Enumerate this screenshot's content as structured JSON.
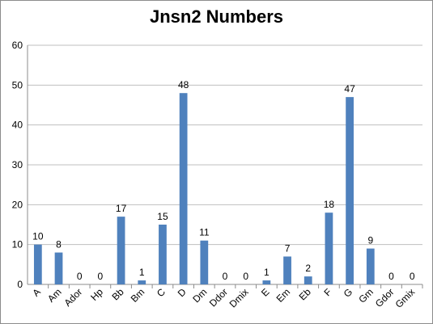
{
  "chart_data": {
    "type": "bar",
    "title": "Jnsn2 Numbers",
    "xlabel": "",
    "ylabel": "",
    "ylim": [
      0,
      60
    ],
    "yticks": [
      0,
      10,
      20,
      30,
      40,
      50,
      60
    ],
    "grid": true,
    "legend": "none",
    "bar_color": "#4f81bd",
    "grid_color": "#bfbfbf",
    "categories": [
      "A",
      "Am",
      "Ador",
      "Hp",
      "Bb",
      "Bm",
      "C",
      "D",
      "Dm",
      "Ddor",
      "Dmix",
      "E",
      "Em",
      "Eb",
      "F",
      "G",
      "Gm",
      "Gdor",
      "Gmix"
    ],
    "values": [
      10,
      8,
      0,
      0,
      17,
      1,
      15,
      48,
      11,
      0,
      0,
      1,
      7,
      2,
      18,
      47,
      9,
      0,
      0
    ]
  }
}
